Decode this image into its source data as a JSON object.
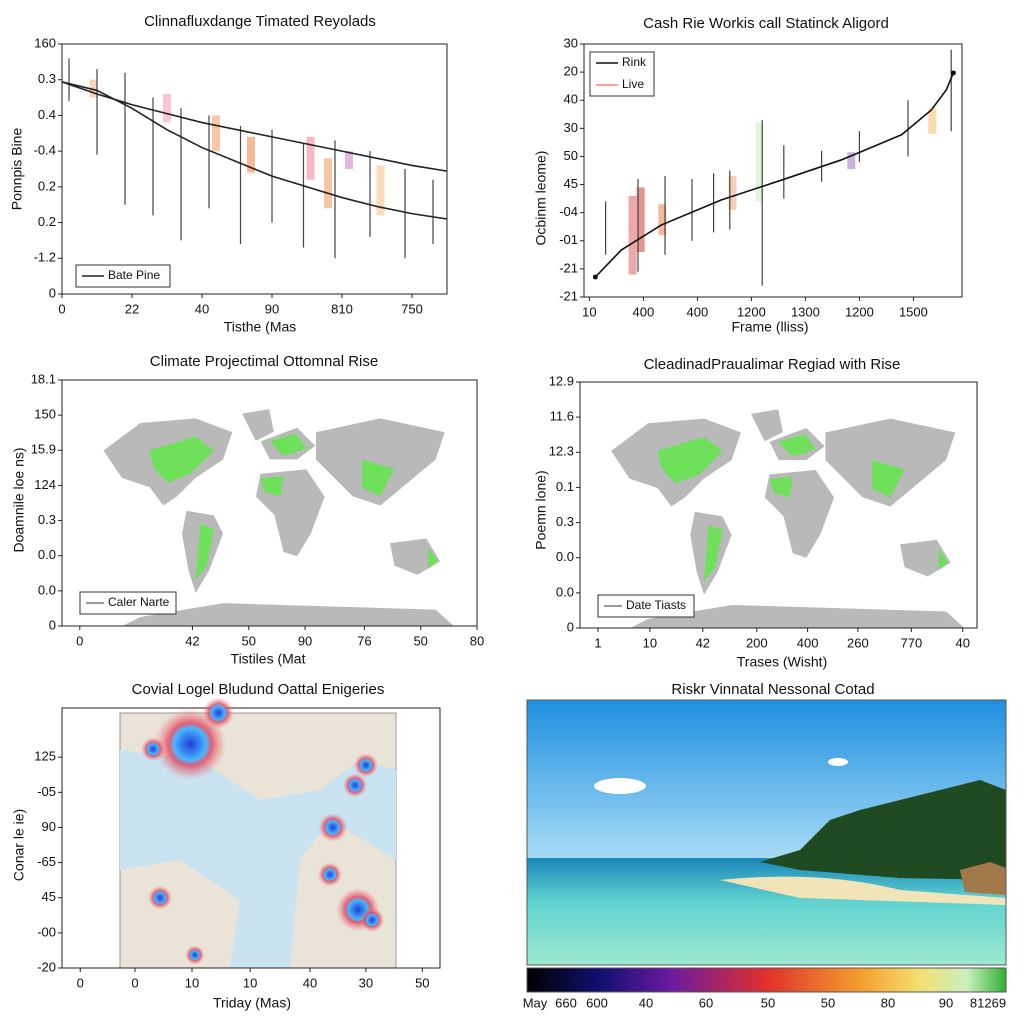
{
  "chart_data": [
    {
      "type": "line",
      "title": "Clinnafluxdange Timated Reyolads",
      "x_label": "Tisthe (Mas",
      "y_label": "Ponnpis Bine",
      "xlim": [
        0,
        5.5
      ],
      "ylim": [
        0,
        7
      ],
      "xticks": [
        0,
        {
          "value": 1,
          "label": "22"
        },
        {
          "value": 2,
          "label": "40"
        },
        {
          "value": 3,
          "label": "90"
        },
        {
          "value": 4,
          "label": "810"
        },
        {
          "value": 5,
          "label": "750"
        }
      ],
      "yticks": [
        0,
        {
          "value": 1,
          "label": "-1.2"
        },
        {
          "value": 2,
          "label": "0.2"
        },
        {
          "value": 3,
          "label": "0.2"
        },
        {
          "value": 4,
          "label": "-0.4"
        },
        {
          "value": 5,
          "label": "0.4"
        },
        {
          "value": 6,
          "label": "0.3"
        },
        {
          "value": 7,
          "label": "160"
        }
      ],
      "series": [
        {
          "name": "Bate Pine",
          "color": "#222222",
          "x": [
            0,
            0.5,
            1,
            1.5,
            2,
            2.5,
            3,
            3.5,
            4,
            4.5,
            5,
            5.5
          ],
          "values": [
            5.94,
            5.6,
            5.3,
            5.05,
            4.8,
            4.6,
            4.4,
            4.2,
            4.0,
            3.8,
            3.6,
            3.44
          ]
        },
        {
          "color": "#222222",
          "x": [
            0,
            0.5,
            1,
            1.5,
            2,
            2.5,
            3,
            3.5,
            4,
            4.5,
            5,
            5.5
          ],
          "values": [
            5.94,
            5.7,
            5.2,
            4.6,
            4.1,
            3.7,
            3.3,
            3.0,
            2.7,
            2.45,
            2.25,
            2.1
          ]
        }
      ],
      "whiskers": {
        "color": "#444444",
        "x": [
          0.1,
          0.5,
          0.9,
          1.3,
          1.7,
          2.1,
          2.55,
          3.0,
          3.45,
          3.9,
          4.4,
          4.9,
          5.3
        ],
        "low": [
          5.4,
          3.9,
          2.5,
          2.2,
          1.5,
          2.4,
          1.4,
          2.0,
          1.3,
          1.0,
          1.6,
          1.0,
          1.4
        ],
        "high": [
          6.6,
          6.3,
          6.2,
          5.5,
          5.2,
          5.0,
          4.7,
          4.6,
          4.2,
          4.3,
          4.0,
          3.5,
          3.2
        ]
      },
      "bands": {
        "x": [
          0.45,
          1.5,
          2.2,
          2.7,
          3.55,
          3.8,
          4.1,
          4.55
        ],
        "low": [
          5.5,
          4.8,
          4.0,
          3.4,
          3.2,
          2.4,
          3.5,
          2.2
        ],
        "high": [
          6.0,
          5.6,
          5.0,
          4.4,
          4.4,
          3.8,
          4.0,
          3.6
        ],
        "colors": [
          "#f5c6a0",
          "#f4b6c2",
          "#f6b48a",
          "#f4a070",
          "#f2a0b0",
          "#f4b080",
          "#d9a0d0",
          "#f8d0a0"
        ]
      },
      "legend": "lower left"
    },
    {
      "type": "line",
      "title": "Cash Rie Workis call Statinck Aligord",
      "x_label": "Frame (lliss)",
      "y_label": "Ocbinm leome)",
      "xlim": [
        -0.1,
        6.9
      ],
      "ylim": [
        0,
        9
      ],
      "xticks": [
        {
          "value": 0,
          "label": "10"
        },
        {
          "value": 1,
          "label": "400"
        },
        {
          "value": 2,
          "label": "400"
        },
        {
          "value": 3,
          "label": "1200"
        },
        {
          "value": 4,
          "label": "1300"
        },
        {
          "value": 5,
          "label": "1200"
        },
        {
          "value": 6,
          "label": "1500"
        }
      ],
      "yticks": [
        {
          "value": 0,
          "label": "-21"
        },
        {
          "value": 1,
          "label": "-21"
        },
        {
          "value": 2,
          "label": "-01"
        },
        {
          "value": 3,
          "label": "-04"
        },
        {
          "value": 4,
          "label": "45"
        },
        {
          "value": 5,
          "label": "50"
        },
        {
          "value": 6,
          "label": "30"
        },
        {
          "value": 7,
          "label": "40"
        },
        {
          "value": 8,
          "label": "20"
        },
        {
          "value": 9,
          "label": "30"
        }
      ],
      "series": [
        {
          "name": "Rink",
          "color": "#111111",
          "x": [
            0.11,
            0.59,
            1.33,
            2.44,
            3.56,
            4.67,
            5.78,
            6.33,
            6.61,
            6.74
          ],
          "values": [
            0.71,
            1.67,
            2.56,
            3.45,
            4.16,
            4.88,
            5.77,
            6.65,
            7.37,
            7.97
          ]
        }
      ],
      "whiskers": {
        "color": "#444444",
        "x": [
          0.3,
          0.9,
          1.4,
          1.9,
          2.3,
          2.6,
          3.2,
          3.6,
          4.3,
          5.0,
          5.9,
          6.7
        ],
        "low": [
          1.5,
          0.9,
          1.5,
          2.0,
          2.3,
          2.4,
          0.4,
          3.5,
          4.1,
          4.8,
          5.0,
          5.9
        ],
        "high": [
          3.4,
          4.2,
          4.3,
          4.2,
          4.4,
          4.5,
          6.3,
          5.4,
          5.2,
          5.9,
          7.0,
          8.8
        ]
      },
      "bands": {
        "name": "Live",
        "color": "#f08a70",
        "x": [
          0.8,
          0.95,
          1.35,
          2.65,
          3.15,
          4.85,
          6.35
        ],
        "low": [
          0.8,
          1.6,
          2.2,
          3.1,
          3.4,
          4.55,
          5.8
        ],
        "high": [
          3.6,
          3.9,
          3.3,
          4.3,
          6.2,
          5.15,
          6.7
        ],
        "colors": [
          "#e88a8a",
          "#d97070",
          "#f0a080",
          "#f0c0a0",
          "#d8f0d0",
          "#b89ad8",
          "#f8d090"
        ]
      },
      "legend": "upper left"
    },
    {
      "type": "map",
      "title": "Climate Projectimal Ottomnal Rise",
      "x_label": "Tistiles (Mat",
      "y_label": "Doamnile loe ns)",
      "xlim": [
        0,
        7
      ],
      "ylim": [
        0,
        7
      ],
      "xticks": [
        {
          "value": 0.3,
          "label": "0"
        },
        {
          "value": 2.2,
          "label": "42"
        },
        {
          "value": 3.15,
          "label": "50"
        },
        {
          "value": 4.1,
          "label": "90"
        },
        {
          "value": 5.1,
          "label": "76"
        },
        {
          "value": 6.05,
          "label": "50"
        },
        {
          "value": 7,
          "label": "80"
        }
      ],
      "yticks": [
        0,
        {
          "value": 1,
          "label": "0.0"
        },
        {
          "value": 2,
          "label": "0.0"
        },
        {
          "value": 3,
          "label": "0.3"
        },
        {
          "value": 4,
          "label": "124"
        },
        {
          "value": 5,
          "label": "15.9"
        },
        {
          "value": 6,
          "label": "150"
        },
        {
          "value": 7,
          "label": "18.1"
        }
      ],
      "legend_label": "Caler Narte"
    },
    {
      "type": "map",
      "title": "CleadinadPraualimar Regiad with Rise",
      "x_label": "Trases (Wisht)",
      "y_label": "Poemn lone)",
      "xlim": [
        0,
        7.5
      ],
      "ylim": [
        0,
        7
      ],
      "xticks": [
        {
          "value": 0.34,
          "label": "1"
        },
        {
          "value": 1.32,
          "label": "10"
        },
        {
          "value": 2.32,
          "label": "42"
        },
        {
          "value": 3.34,
          "label": "200"
        },
        {
          "value": 4.3,
          "label": "400"
        },
        {
          "value": 5.25,
          "label": "260"
        },
        {
          "value": 6.26,
          "label": "770"
        },
        {
          "value": 7.23,
          "label": "40"
        }
      ],
      "yticks": [
        0,
        {
          "value": 1,
          "label": "0.0"
        },
        {
          "value": 2,
          "label": "0.0"
        },
        {
          "value": 3,
          "label": "0.3"
        },
        {
          "value": 4,
          "label": "0.1"
        },
        {
          "value": 5,
          "label": "12.3"
        },
        {
          "value": 6,
          "label": "11.6"
        },
        {
          "value": 7,
          "label": "12.9"
        }
      ],
      "legend_label": "Date Tiasts"
    },
    {
      "type": "scatter",
      "title": "Covial Logel Bludund Oattal Enigeries",
      "x_label": "Triday (Mas)",
      "y_label": "Conar le ie)",
      "xlim": [
        0,
        6.63
      ],
      "ylim": [
        0,
        7.4
      ],
      "xticks": [
        {
          "value": 0.32,
          "label": "0"
        },
        {
          "value": 1.28,
          "label": "0"
        },
        {
          "value": 2.28,
          "label": "10"
        },
        {
          "value": 3.3,
          "label": "10"
        },
        {
          "value": 4.35,
          "label": "40"
        },
        {
          "value": 5.33,
          "label": "30"
        },
        {
          "value": 6.32,
          "label": "50"
        }
      ],
      "yticks": [
        {
          "value": 0,
          "label": "-20"
        },
        {
          "value": 1,
          "label": "-00"
        },
        {
          "value": 2,
          "label": "45"
        },
        {
          "value": 3,
          "label": "-65"
        },
        {
          "value": 4,
          "label": "90"
        },
        {
          "value": 5,
          "label": "-05"
        },
        {
          "value": 6,
          "label": "125"
        }
      ],
      "x": [
        2.25,
        1.6,
        2.74,
        1.72,
        2.33,
        4.75,
        5.14,
        5.33,
        4.7,
        5.19,
        5.44
      ],
      "values": [
        6.37,
        6.23,
        7.26,
        2.0,
        0.37,
        4.0,
        5.2,
        5.77,
        2.66,
        1.66,
        1.37
      ],
      "sizes": [
        3,
        1,
        1.3,
        1,
        0.8,
        1.2,
        1,
        1,
        1,
        1.8,
        1
      ]
    },
    {
      "type": "image",
      "title": "Riskr Vinnatal Nessonal Cotad",
      "colorbar_labels": [
        "May",
        "660",
        "600",
        "40",
        "60",
        "50",
        "50",
        "80",
        "90",
        "81269"
      ]
    }
  ]
}
